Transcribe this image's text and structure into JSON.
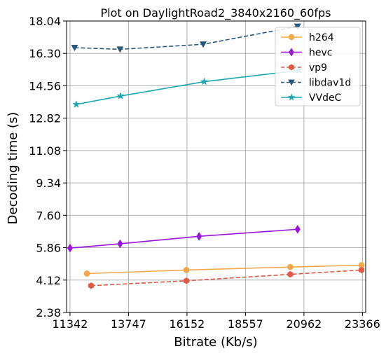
{
  "chart_data": {
    "type": "line",
    "title": "Plot on DaylightRoad2_3840x2160_60fps",
    "xlabel": "Bitrate (Kb/s)",
    "ylabel": "Decoding time (s)",
    "xlim": [
      11200,
      23500
    ],
    "ylim": [
      2.38,
      18.04
    ],
    "xticks": [
      "11342",
      "13747",
      "16152",
      "18557",
      "20962",
      "23366"
    ],
    "yticks": [
      "2.38",
      "4.12",
      "5.86",
      "7.60",
      "9.34",
      "11.08",
      "12.82",
      "14.56",
      "16.30",
      "18.04"
    ],
    "grid": true,
    "legend_position": "top-right",
    "series": [
      {
        "name": "h264",
        "color": "#f5a84a",
        "linestyle": "solid",
        "marker": "circle",
        "points": [
          [
            12040,
            4.47
          ],
          [
            16130,
            4.66
          ],
          [
            20400,
            4.82
          ],
          [
            23330,
            4.92
          ]
        ]
      },
      {
        "name": "hevc",
        "color": "#9b11e0",
        "linestyle": "solid",
        "marker": "diamond",
        "points": [
          [
            11342,
            5.84
          ],
          [
            13400,
            6.07
          ],
          [
            16650,
            6.47
          ],
          [
            20700,
            6.85
          ]
        ]
      },
      {
        "name": "vp9",
        "color": "#e05a48",
        "linestyle": "dashed",
        "marker": "hexagon",
        "points": [
          [
            12210,
            3.82
          ],
          [
            16130,
            4.08
          ],
          [
            20400,
            4.43
          ],
          [
            23330,
            4.66
          ]
        ]
      },
      {
        "name": "libdav1d",
        "color": "#2a587a",
        "linestyle": "dashed",
        "marker": "triangle-down",
        "points": [
          [
            11530,
            16.61
          ],
          [
            13400,
            16.52
          ],
          [
            16820,
            16.79
          ],
          [
            20700,
            17.75
          ]
        ]
      },
      {
        "name": "VVdeC",
        "color": "#1aa8b0",
        "linestyle": "solid",
        "marker": "star",
        "points": [
          [
            11600,
            13.56
          ],
          [
            13420,
            14.01
          ],
          [
            16860,
            14.78
          ],
          [
            20760,
            15.39
          ]
        ]
      }
    ]
  }
}
